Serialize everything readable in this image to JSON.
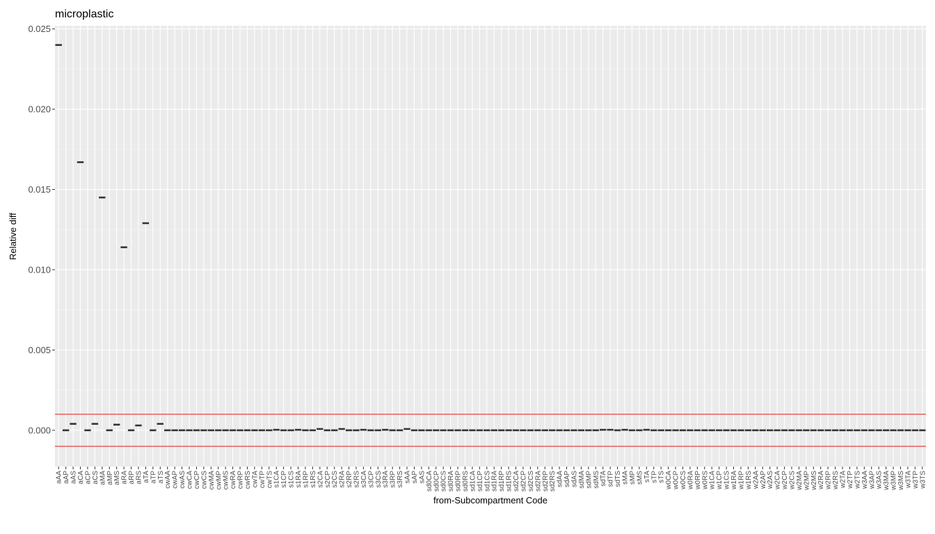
{
  "chart_data": {
    "type": "scatter",
    "title": "microplastic",
    "xlabel": "from-Subcompartment Code",
    "ylabel": "Relative diff",
    "ylim": [
      -0.00226,
      0.0252
    ],
    "yticks": [
      0.0,
      0.005,
      0.01,
      0.015,
      0.02,
      0.025
    ],
    "ytick_labels": [
      "0.000",
      "0.005",
      "0.010",
      "0.015",
      "0.020",
      "0.025"
    ],
    "reference_lines": [
      0.001,
      -0.001
    ],
    "reference_line_color": "#e8423a",
    "panel_background": "#ebebeb",
    "grid": true,
    "mark": "horizontal dash",
    "mark_color": "#333333",
    "categories": [
      "aAA",
      "aAP",
      "aAS",
      "aCA",
      "aCP",
      "aCS",
      "aMA",
      "aMP",
      "aMS",
      "aRA",
      "aRP",
      "aRS",
      "aTA",
      "aTP",
      "aTS",
      "cwAA",
      "cwAP",
      "cwAS",
      "cwCA",
      "cwCP",
      "cwCS",
      "cwMA",
      "cwMP",
      "cwMS",
      "cwRA",
      "cwRP",
      "cwRS",
      "cwTA",
      "cwTP",
      "cwTS",
      "s1CA",
      "s1CP",
      "s1CS",
      "s1RA",
      "s1RP",
      "s1RS",
      "s2CA",
      "s2CP",
      "s2CS",
      "s2RA",
      "s2RP",
      "s2RS",
      "s3CA",
      "s3CP",
      "s3CS",
      "s3RA",
      "s3RP",
      "s3RS",
      "sAA",
      "sAP",
      "sAS",
      "sd0CA",
      "sd0CP",
      "sd0CS",
      "sd0RA",
      "sd0RP",
      "sd0RS",
      "sd1CA",
      "sd1CP",
      "sd1CS",
      "sd1RA",
      "sd1RP",
      "sd1RS",
      "sd2CA",
      "sd2CP",
      "sd2CS",
      "sd2RA",
      "sd2RP",
      "sd2RS",
      "sdAA",
      "sdAP",
      "sdAS",
      "sdMA",
      "sdMP",
      "sdMS",
      "sdTA",
      "sdTP",
      "sdTS",
      "sMA",
      "sMP",
      "sMS",
      "sTA",
      "sTP",
      "sTS",
      "w0CA",
      "w0CP",
      "w0CS",
      "w0RA",
      "w0RP",
      "w0RS",
      "w1CA",
      "w1CP",
      "w1CS",
      "w1RA",
      "w1RP",
      "w1RS",
      "w2AA",
      "w2AP",
      "w2AS",
      "w2CA",
      "w2CP",
      "w2CS",
      "w2MA",
      "w2MP",
      "w2MS",
      "w2RA",
      "w2RP",
      "w2RS",
      "w2TA",
      "w2TP",
      "w2TS",
      "w3AA",
      "w3AP",
      "w3AS",
      "w3MA",
      "w3MP",
      "w3MS",
      "w3TA",
      "w3TP",
      "w3TS"
    ],
    "values": [
      0.024,
      0.0,
      0.0004,
      0.0167,
      0.0,
      0.0004,
      0.0145,
      0.0,
      0.00035,
      0.0114,
      0.0,
      0.0003,
      0.0129,
      0.0,
      0.0004,
      0,
      0,
      0,
      0,
      0,
      0,
      0,
      0,
      0,
      0,
      0,
      0,
      0,
      0,
      0,
      3e-05,
      0,
      0,
      3e-05,
      0,
      0,
      8e-05,
      0,
      0,
      8e-05,
      0,
      0,
      3e-05,
      0,
      0,
      3e-05,
      0,
      0,
      8e-05,
      0,
      0,
      0,
      0,
      0,
      0,
      0,
      0,
      0,
      0,
      0,
      0,
      0,
      0,
      0,
      0,
      0,
      0,
      0,
      0,
      0,
      0,
      0,
      0,
      0,
      0,
      3e-05,
      3e-05,
      0,
      3e-05,
      0,
      0,
      3e-05,
      0,
      0,
      0,
      0,
      0,
      0,
      0,
      0,
      0,
      0,
      0,
      0,
      0,
      0,
      0,
      0,
      0,
      0,
      0,
      0,
      0,
      0,
      0,
      0,
      0,
      0,
      0,
      0,
      0,
      0,
      0,
      0,
      0,
      0,
      0,
      0,
      0,
      0
    ]
  }
}
